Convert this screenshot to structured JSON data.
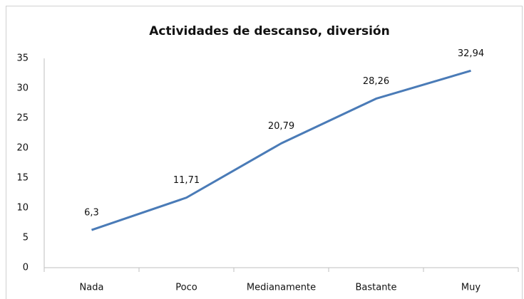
{
  "chart_data": {
    "type": "line",
    "title": "Actividades de descanso, diversión",
    "categories": [
      "Nada",
      "Poco",
      "Medianamente",
      "Bastante",
      "Muy"
    ],
    "values": [
      6.3,
      11.71,
      20.79,
      28.26,
      32.94
    ],
    "value_labels": [
      "6,3",
      "11,71",
      "20,79",
      "28,26",
      "32,94"
    ],
    "color": "#4a7bb7",
    "ylim": [
      0,
      35
    ],
    "yticks": [
      0,
      5,
      10,
      15,
      20,
      25,
      30,
      35
    ],
    "grid": false
  }
}
